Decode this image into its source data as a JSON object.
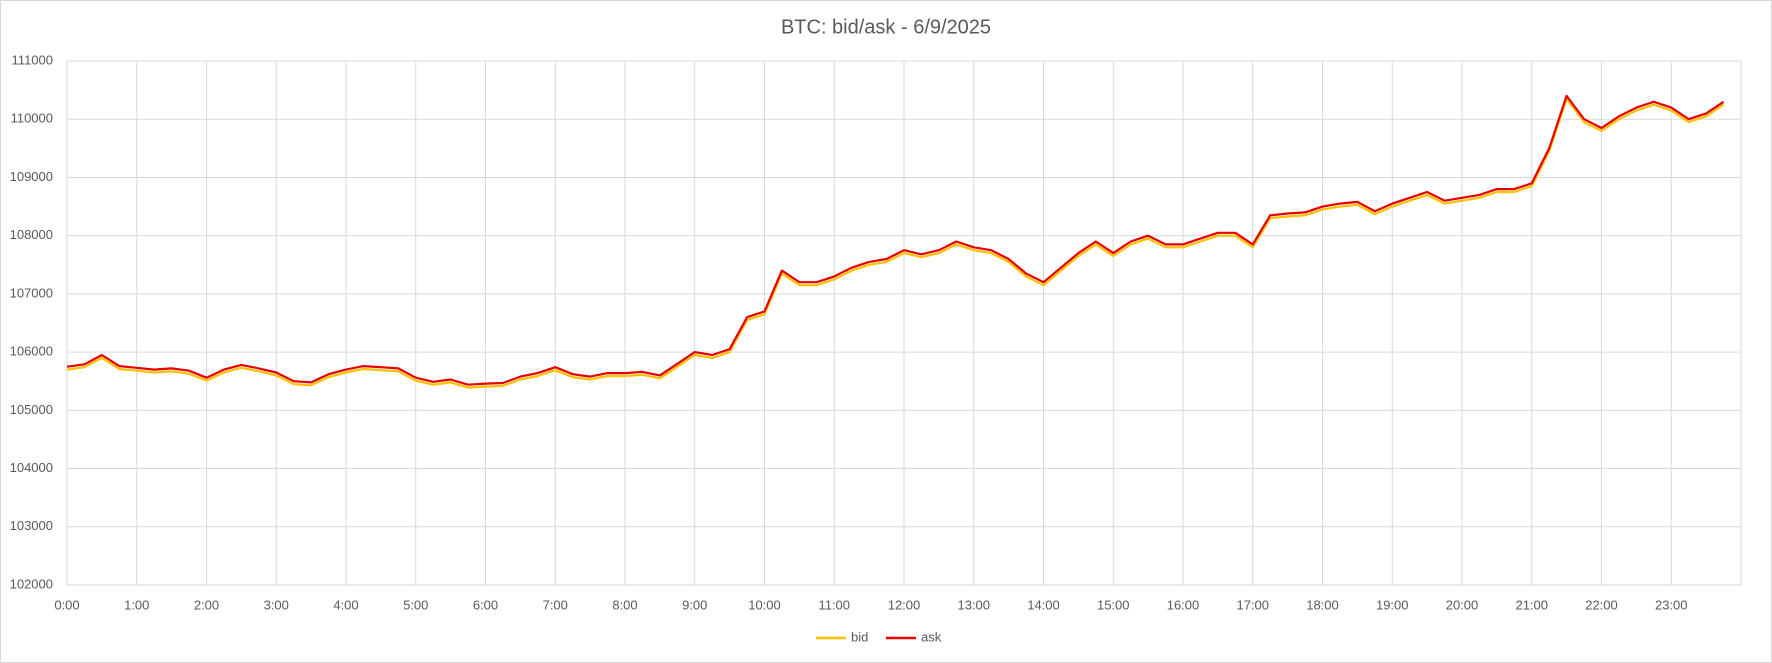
{
  "chart_data": {
    "type": "line",
    "title": "BTC: bid/ask - 6/9/2025",
    "x": [
      0,
      0.25,
      0.5,
      0.75,
      1,
      1.25,
      1.5,
      1.75,
      2,
      2.25,
      2.5,
      2.75,
      3,
      3.25,
      3.5,
      3.75,
      4,
      4.25,
      4.5,
      4.75,
      5,
      5.25,
      5.5,
      5.75,
      6,
      6.25,
      6.5,
      6.75,
      7,
      7.25,
      7.5,
      7.75,
      8,
      8.25,
      8.5,
      8.75,
      9,
      9.25,
      9.5,
      9.75,
      10,
      10.25,
      10.5,
      10.75,
      11,
      11.25,
      11.5,
      11.75,
      12,
      12.25,
      12.5,
      12.75,
      13,
      13.25,
      13.5,
      13.75,
      14,
      14.25,
      14.5,
      14.75,
      15,
      15.25,
      15.5,
      15.75,
      16,
      16.25,
      16.5,
      16.75,
      17,
      17.25,
      17.5,
      17.75,
      18,
      18.25,
      18.5,
      18.75,
      19,
      19.25,
      19.5,
      19.75,
      20,
      20.25,
      20.5,
      20.75,
      21,
      21.25,
      21.5,
      21.75,
      22,
      22.25,
      22.5,
      22.75,
      23,
      23.25,
      23.5,
      23.75
    ],
    "series": [
      {
        "name": "bid",
        "color": "#ffc000",
        "values": [
          105700,
          105740,
          105900,
          105710,
          105680,
          105650,
          105670,
          105630,
          105510,
          105650,
          105730,
          105670,
          105600,
          105450,
          105430,
          105570,
          105650,
          105710,
          105690,
          105670,
          105510,
          105440,
          105480,
          105390,
          105410,
          105420,
          105530,
          105590,
          105690,
          105570,
          105530,
          105590,
          105590,
          105610,
          105550,
          105750,
          105950,
          105900,
          106000,
          106550,
          106650,
          107350,
          107150,
          107150,
          107250,
          107400,
          107500,
          107550,
          107700,
          107630,
          107700,
          107850,
          107750,
          107700,
          107550,
          107300,
          107150,
          107400,
          107650,
          107850,
          107650,
          107850,
          107950,
          107800,
          107800,
          107900,
          108000,
          108000,
          107800,
          108300,
          108330,
          108350,
          108450,
          108500,
          108530,
          108370,
          108500,
          108600,
          108700,
          108550,
          108600,
          108650,
          108750,
          108750,
          108850,
          109450,
          110350,
          109950,
          109800,
          110000,
          110150,
          110250,
          110150,
          109950,
          110050,
          110250
        ]
      },
      {
        "name": "ask",
        "color": "#e60000",
        "values": [
          105750,
          105790,
          105950,
          105760,
          105730,
          105700,
          105720,
          105680,
          105560,
          105700,
          105780,
          105720,
          105650,
          105500,
          105480,
          105620,
          105700,
          105760,
          105740,
          105720,
          105560,
          105490,
          105530,
          105440,
          105460,
          105470,
          105580,
          105640,
          105740,
          105620,
          105580,
          105640,
          105640,
          105660,
          105600,
          105800,
          106000,
          105950,
          106050,
          106600,
          106700,
          107400,
          107200,
          107200,
          107300,
          107450,
          107550,
          107600,
          107750,
          107680,
          107750,
          107900,
          107800,
          107750,
          107600,
          107350,
          107200,
          107450,
          107700,
          107900,
          107700,
          107900,
          108000,
          107850,
          107850,
          107950,
          108050,
          108050,
          107850,
          108350,
          108380,
          108400,
          108500,
          108550,
          108580,
          108420,
          108550,
          108650,
          108750,
          108600,
          108650,
          108700,
          108800,
          108800,
          108900,
          109500,
          110400,
          110000,
          109850,
          110050,
          110200,
          110300,
          110200,
          110000,
          110100,
          110300
        ]
      }
    ],
    "xlim": [
      0,
      24
    ],
    "xticks": [
      {
        "value": 0,
        "label": "0:00"
      },
      {
        "value": 1,
        "label": "1:00"
      },
      {
        "value": 2,
        "label": "2:00"
      },
      {
        "value": 3,
        "label": "3:00"
      },
      {
        "value": 4,
        "label": "4:00"
      },
      {
        "value": 5,
        "label": "5:00"
      },
      {
        "value": 6,
        "label": "6:00"
      },
      {
        "value": 7,
        "label": "7:00"
      },
      {
        "value": 8,
        "label": "8:00"
      },
      {
        "value": 9,
        "label": "9:00"
      },
      {
        "value": 10,
        "label": "10:00"
      },
      {
        "value": 11,
        "label": "11:00"
      },
      {
        "value": 12,
        "label": "12:00"
      },
      {
        "value": 13,
        "label": "13:00"
      },
      {
        "value": 14,
        "label": "14:00"
      },
      {
        "value": 15,
        "label": "15:00"
      },
      {
        "value": 16,
        "label": "16:00"
      },
      {
        "value": 17,
        "label": "17:00"
      },
      {
        "value": 18,
        "label": "18:00"
      },
      {
        "value": 19,
        "label": "19:00"
      },
      {
        "value": 20,
        "label": "20:00"
      },
      {
        "value": 21,
        "label": "21:00"
      },
      {
        "value": 22,
        "label": "22:00"
      },
      {
        "value": 23,
        "label": "23:00"
      }
    ],
    "ylim": [
      102000,
      111000
    ],
    "yticks": [
      102000,
      103000,
      104000,
      105000,
      106000,
      107000,
      108000,
      109000,
      110000,
      111000
    ],
    "grid": true,
    "legend": "bottom"
  }
}
